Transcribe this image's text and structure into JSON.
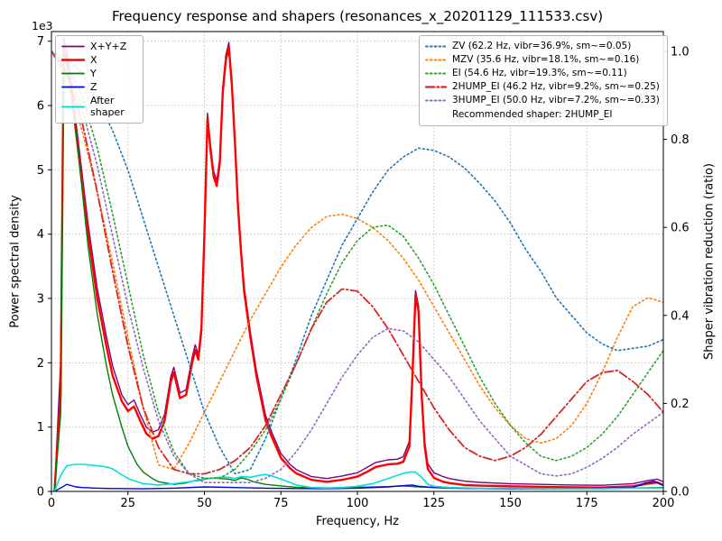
{
  "chart_data": {
    "type": "line",
    "title": "Frequency response and shapers (resonances_x_20201129_111533.csv)",
    "xlabel": "Frequency, Hz",
    "ylabel_left": "Power spectral density",
    "ylabel_right": "Shaper vibration reduction (ratio)",
    "offset_text": "1e3",
    "grid": true,
    "legend_left_position": "upper left",
    "legend_right_position": "upper right",
    "xlim": [
      0,
      200
    ],
    "ylim_left": [
      0,
      7150
    ],
    "ylim_right": [
      0,
      1.045
    ],
    "xticks": {
      "values": [
        0,
        25,
        50,
        75,
        100,
        125,
        150,
        175,
        200
      ],
      "labels": [
        "0",
        "25",
        "50",
        "75",
        "100",
        "125",
        "150",
        "175",
        "200"
      ]
    },
    "yticks_left": {
      "values": [
        0,
        1000,
        2000,
        3000,
        4000,
        5000,
        6000,
        7000
      ],
      "labels": [
        "0",
        "1",
        "2",
        "3",
        "4",
        "5",
        "6",
        "7"
      ]
    },
    "yticks_right": {
      "values": [
        0,
        0.2,
        0.4,
        0.6,
        0.8,
        1.0
      ],
      "labels": [
        "0.0",
        "0.2",
        "0.4",
        "0.6",
        "0.8",
        "1.0"
      ]
    },
    "colors": {
      "grid": "#b0b0b0",
      "axes": "#000000",
      "xyz": "#800080",
      "x": "#ff0000",
      "y": "#008000",
      "z": "#0000e0",
      "after_shaper": "#00e0e0",
      "zv": "#1f77b4",
      "mzv": "#ff7f0e",
      "ei": "#2ca02c",
      "hump2": "#d62728",
      "hump3": "#9467bd"
    },
    "psd_series": [
      {
        "name": "X+Y+Z",
        "color": "#800080",
        "style": "solid",
        "width": 1.4,
        "x": [
          1,
          3,
          4,
          5,
          6,
          8,
          10,
          12,
          15,
          18,
          20,
          23,
          25,
          27,
          29,
          31,
          33,
          35,
          37,
          39,
          40,
          42,
          44,
          46,
          47,
          48,
          49,
          50,
          51,
          52,
          53,
          54,
          55,
          56,
          57,
          58,
          59,
          60,
          61,
          62,
          63,
          65,
          67,
          70,
          72,
          75,
          78,
          80,
          85,
          90,
          95,
          100,
          103,
          106,
          110,
          113,
          115,
          117,
          118,
          119,
          120,
          121,
          122,
          123,
          125,
          128,
          130,
          135,
          140,
          150,
          160,
          170,
          180,
          190,
          195,
          198,
          200
        ],
        "y": [
          0,
          2000,
          7050,
          6850,
          6550,
          5750,
          4950,
          4150,
          3150,
          2400,
          1950,
          1500,
          1350,
          1420,
          1200,
          1000,
          920,
          960,
          1200,
          1780,
          1930,
          1530,
          1580,
          2080,
          2280,
          2130,
          2580,
          4080,
          5880,
          5380,
          4980,
          4830,
          5180,
          6280,
          6780,
          6980,
          6380,
          5480,
          4480,
          3780,
          3180,
          2480,
          1880,
          1180,
          920,
          590,
          420,
          340,
          230,
          200,
          240,
          290,
          370,
          450,
          490,
          500,
          540,
          780,
          1880,
          3120,
          2880,
          1580,
          780,
          430,
          290,
          230,
          200,
          160,
          140,
          120,
          110,
          100,
          95,
          120,
          170,
          190,
          150
        ]
      },
      {
        "name": "X",
        "color": "#ff0000",
        "style": "solid",
        "width": 2.4,
        "x": [
          1,
          3,
          4,
          5,
          6,
          8,
          10,
          12,
          15,
          18,
          20,
          23,
          25,
          27,
          29,
          31,
          33,
          35,
          37,
          39,
          40,
          42,
          44,
          46,
          47,
          48,
          49,
          50,
          51,
          52,
          53,
          54,
          55,
          56,
          57,
          58,
          59,
          60,
          61,
          62,
          63,
          65,
          67,
          70,
          72,
          75,
          78,
          80,
          85,
          90,
          95,
          100,
          103,
          106,
          110,
          113,
          115,
          117,
          118,
          119,
          120,
          121,
          122,
          123,
          125,
          128,
          130,
          135,
          140,
          150,
          160,
          170,
          180,
          190,
          195,
          198,
          200
        ],
        "y": [
          0,
          1500,
          6900,
          6700,
          6400,
          5600,
          4800,
          4000,
          3000,
          2250,
          1800,
          1400,
          1250,
          1320,
          1100,
          900,
          820,
          860,
          1100,
          1700,
          1850,
          1450,
          1500,
          2000,
          2200,
          2050,
          2500,
          4000,
          5800,
          5300,
          4900,
          4750,
          5100,
          6200,
          6700,
          6900,
          6300,
          5400,
          4400,
          3700,
          3100,
          2400,
          1800,
          1100,
          850,
          520,
          360,
          280,
          180,
          150,
          180,
          230,
          300,
          380,
          420,
          430,
          460,
          700,
          1800,
          3050,
          2800,
          1500,
          700,
          350,
          210,
          150,
          130,
          100,
          90,
          80,
          70,
          65,
          60,
          80,
          120,
          140,
          100
        ]
      },
      {
        "name": "Y",
        "color": "#008000",
        "style": "solid",
        "width": 1.4,
        "x": [
          1,
          3,
          4,
          6,
          8,
          10,
          12,
          15,
          18,
          20,
          23,
          25,
          28,
          30,
          33,
          35,
          40,
          44,
          46,
          48,
          50,
          53,
          55,
          58,
          60,
          62,
          64,
          66,
          70,
          75,
          80,
          90,
          100,
          110,
          115,
          120,
          130,
          140,
          160,
          180,
          200
        ],
        "y": [
          0,
          1200,
          6600,
          6350,
          5600,
          4700,
          3800,
          2750,
          1950,
          1500,
          1000,
          700,
          420,
          300,
          200,
          150,
          110,
          130,
          160,
          170,
          190,
          210,
          200,
          190,
          170,
          210,
          190,
          150,
          110,
          85,
          65,
          55,
          65,
          75,
          85,
          70,
          55,
          45,
          40,
          45,
          60
        ]
      },
      {
        "name": "Z",
        "color": "#0000e0",
        "style": "solid",
        "width": 1.4,
        "x": [
          1,
          4,
          5,
          8,
          10,
          15,
          20,
          30,
          40,
          50,
          60,
          70,
          80,
          90,
          100,
          110,
          115,
          118,
          120,
          125,
          130,
          140,
          150,
          160,
          170,
          180,
          190,
          194,
          197,
          200
        ],
        "y": [
          0,
          80,
          110,
          70,
          60,
          50,
          45,
          40,
          50,
          70,
          60,
          50,
          45,
          40,
          50,
          70,
          90,
          100,
          80,
          60,
          50,
          45,
          40,
          40,
          45,
          50,
          60,
          130,
          160,
          90
        ]
      },
      {
        "name": "After shaper",
        "color": "#00e0e0",
        "style": "solid",
        "width": 1.6,
        "x": [
          1,
          3,
          5,
          8,
          10,
          13,
          15,
          18,
          20,
          23,
          25,
          28,
          30,
          35,
          40,
          45,
          48,
          50,
          53,
          55,
          58,
          60,
          62,
          65,
          68,
          70,
          72,
          75,
          78,
          80,
          85,
          90,
          95,
          100,
          105,
          110,
          113,
          115,
          117,
          119,
          121,
          123,
          125,
          130,
          140,
          150,
          160,
          170,
          180,
          190,
          200
        ],
        "y": [
          0,
          250,
          400,
          420,
          420,
          410,
          400,
          380,
          350,
          260,
          200,
          150,
          120,
          100,
          120,
          150,
          180,
          200,
          210,
          220,
          220,
          200,
          230,
          220,
          250,
          265,
          240,
          190,
          140,
          100,
          60,
          50,
          60,
          80,
          120,
          200,
          250,
          280,
          300,
          300,
          220,
          110,
          80,
          60,
          50,
          50,
          45,
          40,
          40,
          50,
          50
        ]
      }
    ],
    "shaper_x": [
      0,
      5,
      10,
      15,
      20,
      25,
      30,
      35,
      40,
      45,
      50,
      55,
      60,
      65,
      70,
      75,
      80,
      85,
      90,
      95,
      100,
      105,
      110,
      115,
      120,
      125,
      130,
      135,
      140,
      145,
      150,
      155,
      160,
      165,
      170,
      175,
      180,
      185,
      190,
      195,
      200
    ],
    "shaper_series": [
      {
        "name": "ZV",
        "label": "ZV (62.2 Hz, vibr=36.9%, sm~=0.05)",
        "freq_hz": 62.2,
        "vibr_pct": 36.9,
        "smoothing": 0.05,
        "color": "#1f77b4",
        "style": "dotted",
        "width": 1.6,
        "y": [
          1.0,
          0.985,
          0.95,
          0.89,
          0.82,
          0.73,
          0.62,
          0.51,
          0.4,
          0.29,
          0.18,
          0.1,
          0.04,
          0.05,
          0.12,
          0.21,
          0.3,
          0.4,
          0.48,
          0.56,
          0.62,
          0.68,
          0.73,
          0.76,
          0.78,
          0.775,
          0.76,
          0.735,
          0.7,
          0.66,
          0.61,
          0.55,
          0.5,
          0.44,
          0.4,
          0.36,
          0.335,
          0.32,
          0.325,
          0.33,
          0.345
        ]
      },
      {
        "name": "MZV",
        "label": "MZV (35.6 Hz, vibr=18.1%, sm~=0.16)",
        "freq_hz": 35.6,
        "vibr_pct": 18.1,
        "smoothing": 0.16,
        "color": "#ff7f0e",
        "style": "dotted",
        "width": 1.6,
        "y": [
          1.0,
          0.93,
          0.82,
          0.68,
          0.52,
          0.35,
          0.19,
          0.06,
          0.05,
          0.11,
          0.18,
          0.25,
          0.32,
          0.39,
          0.45,
          0.51,
          0.56,
          0.6,
          0.625,
          0.63,
          0.62,
          0.6,
          0.57,
          0.53,
          0.48,
          0.42,
          0.36,
          0.3,
          0.24,
          0.19,
          0.15,
          0.12,
          0.11,
          0.12,
          0.15,
          0.2,
          0.27,
          0.35,
          0.42,
          0.44,
          0.43
        ]
      },
      {
        "name": "EI",
        "label": "EI (54.6 Hz, vibr=19.3%, sm~=0.11)",
        "freq_hz": 54.6,
        "vibr_pct": 19.3,
        "smoothing": 0.11,
        "color": "#2ca02c",
        "style": "dotted",
        "width": 1.6,
        "y": [
          1.0,
          0.97,
          0.9,
          0.78,
          0.63,
          0.47,
          0.31,
          0.18,
          0.09,
          0.04,
          0.03,
          0.03,
          0.05,
          0.09,
          0.14,
          0.21,
          0.29,
          0.37,
          0.45,
          0.52,
          0.57,
          0.6,
          0.605,
          0.58,
          0.53,
          0.47,
          0.4,
          0.33,
          0.26,
          0.2,
          0.15,
          0.11,
          0.08,
          0.07,
          0.08,
          0.1,
          0.13,
          0.17,
          0.22,
          0.27,
          0.32
        ]
      },
      {
        "name": "2HUMP_EI",
        "label": "2HUMP_EI (46.2 Hz, vibr=9.2%, sm~=0.25)",
        "freq_hz": 46.2,
        "vibr_pct": 9.2,
        "smoothing": 0.25,
        "color": "#d62728",
        "style": "dashdot",
        "width": 1.8,
        "y": [
          1.0,
          0.95,
          0.84,
          0.68,
          0.5,
          0.33,
          0.19,
          0.1,
          0.05,
          0.04,
          0.04,
          0.05,
          0.07,
          0.1,
          0.15,
          0.22,
          0.29,
          0.37,
          0.43,
          0.46,
          0.455,
          0.42,
          0.37,
          0.31,
          0.25,
          0.19,
          0.14,
          0.1,
          0.08,
          0.07,
          0.08,
          0.1,
          0.13,
          0.17,
          0.21,
          0.25,
          0.27,
          0.275,
          0.25,
          0.22,
          0.18
        ]
      },
      {
        "name": "3HUMP_EI",
        "label": "3HUMP_EI (50.0 Hz, vibr=7.2%, sm~=0.33)",
        "freq_hz": 50.0,
        "vibr_pct": 7.2,
        "smoothing": 0.33,
        "color": "#9467bd",
        "style": "dotted",
        "width": 1.6,
        "y": [
          1.0,
          0.96,
          0.87,
          0.74,
          0.58,
          0.42,
          0.28,
          0.16,
          0.08,
          0.04,
          0.02,
          0.02,
          0.02,
          0.02,
          0.03,
          0.05,
          0.09,
          0.14,
          0.2,
          0.26,
          0.31,
          0.35,
          0.37,
          0.365,
          0.34,
          0.3,
          0.26,
          0.21,
          0.16,
          0.12,
          0.08,
          0.06,
          0.04,
          0.035,
          0.04,
          0.055,
          0.075,
          0.1,
          0.13,
          0.155,
          0.18
        ]
      }
    ],
    "recommended": "2HUMP_EI",
    "recommended_label": "Recommended shaper: 2HUMP_EI"
  }
}
